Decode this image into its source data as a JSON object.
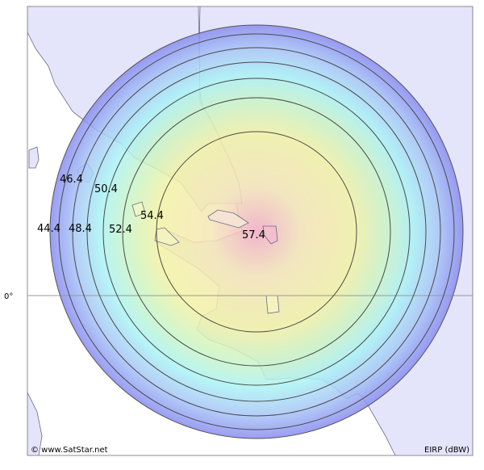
{
  "map": {
    "equator_label": "0°",
    "copyright": "© www.SatStar.net",
    "legend_unit": "EIRP (dBW)",
    "contours": [
      {
        "label": "57.4"
      },
      {
        "label": "54.4"
      },
      {
        "label": "52.4"
      },
      {
        "label": "50.4"
      },
      {
        "label": "48.4"
      },
      {
        "label": "46.4"
      },
      {
        "label": "44.4"
      }
    ],
    "colors": {
      "sea": "#ffffff",
      "land": "#e4e4fb",
      "coast": "#6a6a8a",
      "contour_line": "#444444",
      "beam_center": "#f3b4c4",
      "beam_mid": "#f3f1a6",
      "beam_ring": "#aef2f2",
      "beam_outer": "#8e8ef0"
    }
  }
}
